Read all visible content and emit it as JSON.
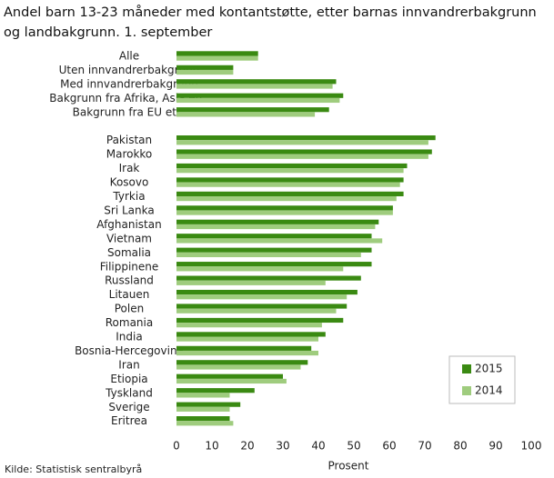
{
  "chart_data": {
    "type": "hbar",
    "title": "Andel barn 13-23 måneder med kontantstøtte, etter barnas innvandrerbakgrunn og landbakgrunn. 1. september",
    "categories": [
      "Alle",
      "Uten innvandrerbakgrunn",
      "Med innvandrerbakgrunn",
      "Bakgrunn fra Afrika, Asia etc.",
      "Bakgrunn fra EU etc.",
      null,
      "Pakistan",
      "Marokko",
      "Irak",
      "Kosovo",
      "Tyrkia",
      "Sri Lanka",
      "Afghanistan",
      "Vietnam",
      "Somalia",
      "Filippinene",
      "Russland",
      "Litauen",
      "Polen",
      "Romania",
      "India",
      "Bosnia-Hercegovina",
      "Iran",
      "Etiopia",
      "Tyskland",
      "Sverige",
      "Eritrea"
    ],
    "series": [
      {
        "name": "2015",
        "color": "#3a8a12",
        "values": [
          23,
          16,
          45,
          47,
          43,
          null,
          73,
          72,
          65,
          64,
          64,
          61,
          57,
          55,
          55,
          55,
          52,
          51,
          48,
          47,
          42,
          38,
          37,
          30,
          22,
          18,
          15
        ]
      },
      {
        "name": "2014",
        "color": "#9fcc7e",
        "values": [
          23,
          16,
          44,
          46,
          39,
          null,
          71,
          71,
          64,
          63,
          62,
          61,
          56,
          58,
          52,
          47,
          42,
          48,
          45,
          41,
          40,
          40,
          35,
          31,
          15,
          15,
          16
        ]
      }
    ],
    "xlim": [
      0,
      100
    ],
    "xticks": [
      0,
      10,
      20,
      30,
      40,
      50,
      60,
      70,
      80,
      90,
      100
    ],
    "xlabel": "Prosent",
    "source": "Kilde: Statistisk sentralbyrå",
    "legend": "lower right"
  }
}
